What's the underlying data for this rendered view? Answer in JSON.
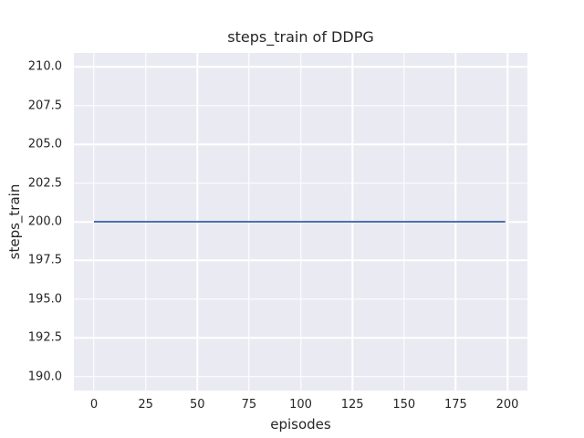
{
  "chart_data": {
    "type": "line",
    "title": "steps_train of DDPG",
    "xlabel": "episodes",
    "ylabel": "steps_train",
    "x_ticks": [
      0,
      25,
      50,
      75,
      100,
      125,
      150,
      175,
      200
    ],
    "x_tick_labels": [
      "0",
      "25",
      "50",
      "75",
      "100",
      "125",
      "150",
      "175",
      "200"
    ],
    "y_ticks": [
      190,
      192.5,
      195,
      197.5,
      200,
      202.5,
      205,
      207.5,
      210
    ],
    "y_tick_labels": [
      "190.0",
      "192.5",
      "195.0",
      "197.5",
      "200.0",
      "202.5",
      "205.0",
      "207.5",
      "210.0"
    ],
    "xlim": [
      -9.7,
      209.7
    ],
    "ylim": [
      189.1,
      210.9
    ],
    "grid": true,
    "legend": false,
    "series": [
      {
        "name": "steps_train",
        "color": "#4c72b0",
        "x": [
          0,
          199
        ],
        "y": [
          200,
          200
        ]
      }
    ],
    "style": {
      "figure_background": "#ffffff",
      "axes_background": "#eaeaf2",
      "grid_color": "#ffffff",
      "text_color": "#262626",
      "line_width": 2
    }
  }
}
